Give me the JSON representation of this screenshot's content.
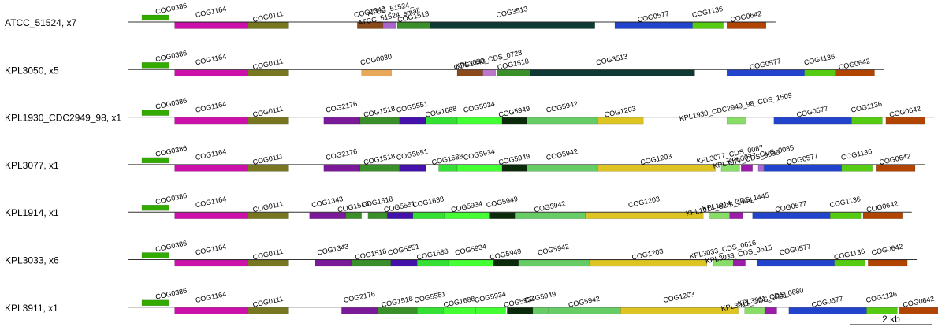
{
  "chart_data": {
    "type": "gene-neighborhood",
    "unit": "bp",
    "scale_bar": {
      "label": "2 kb",
      "length_bp": 2000
    },
    "colors": {
      "COG0386": "#33aa00",
      "COG1164": "#cc11aa",
      "COG0111": "#777722",
      "COG1343": "#8a4a1a",
      "COG1518": "#3b8f2a",
      "COG3513": "#0f3a33",
      "COG0577": "#2244cc",
      "COG1136": "#55cc11",
      "COG0642": "#b04400",
      "COG0030": "#e8a85a",
      "COG2176": "#7a1a99",
      "COG5551": "#4411aa",
      "COG1688": "#33e033",
      "COG5934": "#44ff33",
      "COG5949": "#0a2a0a",
      "COG5942": "#66cc66",
      "COG1203": "#ddc422",
      "CDS": "#9b1eaa",
      "small_green": "#88dd66",
      "ATCC_51524_small": "#aa66cc",
      "KPL3050_CDS_0728": "#bb77cc"
    },
    "tracks": [
      {
        "label": "ATCC_51524, x7",
        "genes": [
          {
            "name": "COG0386",
            "start": 0,
            "end": 380,
            "color": "COG0386",
            "row": 0
          },
          {
            "name": "COG1164",
            "start": 460,
            "end": 1490,
            "color": "COG1164",
            "row": 1
          },
          {
            "name": "COG0111",
            "start": 1490,
            "end": 2060,
            "color": "COG0111",
            "row": 1
          },
          {
            "name": "COG1343",
            "start": 3020,
            "end": 3380,
            "color": "COG1343",
            "row": 1
          },
          {
            "name": "ATCC_51524_small",
            "start": 3380,
            "end": 3560,
            "color": "ATCC_51524_small",
            "row": 1,
            "label": ""
          },
          {
            "name": "ATCC_51524_",
            "start": 3380,
            "end": 3380,
            "color": "ATCC_51524_small",
            "row": 1,
            "label_only": true
          },
          {
            "name": "COG1518",
            "start": 3580,
            "end": 4040,
            "color": "COG1518",
            "row": 1,
            "dark": true
          },
          {
            "name": "COG3513",
            "start": 4040,
            "end": 6350,
            "color": "COG3513",
            "row": 1
          },
          {
            "name": "COG0577",
            "start": 6630,
            "end": 7720,
            "color": "COG0577",
            "row": 1
          },
          {
            "name": "COG1136",
            "start": 7720,
            "end": 8150,
            "color": "COG1136",
            "row": 1
          },
          {
            "name": "COG0642",
            "start": 8200,
            "end": 8750,
            "color": "COG0642",
            "row": 1
          }
        ]
      },
      {
        "label": "KPL3050, x5",
        "genes": [
          {
            "name": "COG0386",
            "start": 0,
            "end": 380,
            "color": "COG0386",
            "row": 0
          },
          {
            "name": "COG1164",
            "start": 460,
            "end": 1490,
            "color": "COG1164",
            "row": 1
          },
          {
            "name": "COG0111",
            "start": 1490,
            "end": 2060,
            "color": "COG0111",
            "row": 1
          },
          {
            "name": "COG0030",
            "start": 3080,
            "end": 3500,
            "color": "COG0030",
            "row": 1
          },
          {
            "name": "COG1343",
            "start": 4420,
            "end": 4780,
            "color": "COG1343",
            "row": 1
          },
          {
            "name": "KPL3050_CDS_0728",
            "start": 4780,
            "end": 4960,
            "color": "KPL3050_CDS_0728",
            "row": 1
          },
          {
            "name": "COG1518",
            "start": 4980,
            "end": 5440,
            "color": "COG1518",
            "row": 1,
            "dark": true
          },
          {
            "name": "COG3513",
            "start": 5440,
            "end": 7750,
            "color": "COG3513",
            "row": 1
          },
          {
            "name": "COG0577",
            "start": 8200,
            "end": 9290,
            "color": "COG0577",
            "row": 1
          },
          {
            "name": "COG1136",
            "start": 9290,
            "end": 9720,
            "color": "COG1136",
            "row": 1
          },
          {
            "name": "COG0642",
            "start": 9720,
            "end": 10270,
            "color": "COG0642",
            "row": 1
          }
        ]
      },
      {
        "label": "KPL1930_CDC2949_98, x1",
        "genes": [
          {
            "name": "COG0386",
            "start": 0,
            "end": 380,
            "color": "COG0386",
            "row": 0
          },
          {
            "name": "COG1164",
            "start": 460,
            "end": 1490,
            "color": "COG1164",
            "row": 1
          },
          {
            "name": "COG0111",
            "start": 1490,
            "end": 2060,
            "color": "COG0111",
            "row": 1
          },
          {
            "name": "COG2176",
            "start": 2550,
            "end": 3060,
            "color": "COG2176",
            "row": 1
          },
          {
            "name": "COG1518",
            "start": 3060,
            "end": 3610,
            "color": "COG1518",
            "row": 1
          },
          {
            "name": "COG5551",
            "start": 3610,
            "end": 3980,
            "color": "COG5551",
            "row": 1
          },
          {
            "name": "COG1688",
            "start": 3980,
            "end": 4420,
            "color": "COG1688",
            "row": 1
          },
          {
            "name": "COG5934",
            "start": 4420,
            "end": 5050,
            "color": "COG5934",
            "row": 1
          },
          {
            "name": "COG5949",
            "start": 5050,
            "end": 5400,
            "color": "COG5949",
            "row": 1
          },
          {
            "name": "COG5942",
            "start": 5400,
            "end": 6390,
            "color": "COG5942",
            "row": 1
          },
          {
            "name": "COG1203",
            "start": 6390,
            "end": 7030,
            "color": "COG1203",
            "row": 1
          },
          {
            "name": "KPL1930_CDC2949_98_CDS_1509",
            "start": 8200,
            "end": 8460,
            "color": "small_green",
            "row": 1
          },
          {
            "name": "COG0577",
            "start": 8860,
            "end": 9950,
            "color": "COG0577",
            "row": 1
          },
          {
            "name": "COG1136",
            "start": 9950,
            "end": 10380,
            "color": "COG1136",
            "row": 1
          },
          {
            "name": "COG0642",
            "start": 10430,
            "end": 10980,
            "color": "COG0642",
            "row": 1
          }
        ]
      },
      {
        "label": "KPL3077, x1",
        "genes": [
          {
            "name": "COG0386",
            "start": 0,
            "end": 380,
            "color": "COG0386",
            "row": 0
          },
          {
            "name": "COG1164",
            "start": 460,
            "end": 1490,
            "color": "COG1164",
            "row": 1
          },
          {
            "name": "COG0111",
            "start": 1490,
            "end": 2060,
            "color": "COG0111",
            "row": 1
          },
          {
            "name": "COG2176",
            "start": 2550,
            "end": 3060,
            "color": "COG2176",
            "row": 1
          },
          {
            "name": "COG1518",
            "start": 3060,
            "end": 3610,
            "color": "COG1518",
            "row": 1
          },
          {
            "name": "COG5551",
            "start": 3610,
            "end": 3980,
            "color": "COG5551",
            "row": 1
          },
          {
            "name": "COG1688",
            "start": 4160,
            "end": 4420,
            "color": "COG1688",
            "row": 1
          },
          {
            "name": "COG5934",
            "start": 4420,
            "end": 5050,
            "color": "COG5934",
            "row": 1
          },
          {
            "name": "COG5949",
            "start": 5050,
            "end": 5400,
            "color": "COG5949",
            "row": 1
          },
          {
            "name": "COG5942",
            "start": 5400,
            "end": 6390,
            "color": "COG5942",
            "row": 1
          },
          {
            "name": "COG1203",
            "start": 6390,
            "end": 8040,
            "color": "COG1203",
            "row": 1
          },
          {
            "name": "KPL3077_CDS_0087",
            "start": 8120,
            "end": 8380,
            "color": "small_green",
            "row": 1
          },
          {
            "name": "KPL3077_CDS_0096",
            "start": 8400,
            "end": 8560,
            "color": "CDS",
            "row": 1
          },
          {
            "name": "KPL3077_CDS_0085",
            "start": 8640,
            "end": 8720,
            "color": "ATCC_51524_small",
            "row": 1
          },
          {
            "name": "COG0577",
            "start": 8720,
            "end": 9810,
            "color": "COG0577",
            "row": 1
          },
          {
            "name": "COG1136",
            "start": 9810,
            "end": 10240,
            "color": "COG1136",
            "row": 1
          },
          {
            "name": "COG0642",
            "start": 10290,
            "end": 10840,
            "color": "COG0642",
            "row": 1
          }
        ]
      },
      {
        "label": "KPL1914, x1",
        "genes": [
          {
            "name": "COG0386",
            "start": 0,
            "end": 380,
            "color": "COG0386",
            "row": 0
          },
          {
            "name": "COG1164",
            "start": 460,
            "end": 1490,
            "color": "COG1164",
            "row": 1
          },
          {
            "name": "COG0111",
            "start": 1490,
            "end": 2060,
            "color": "COG0111",
            "row": 1
          },
          {
            "name": "COG1343",
            "start": 2350,
            "end": 2860,
            "color": "COG2176",
            "row": 1
          },
          {
            "name": "COG1518",
            "start": 2860,
            "end": 3080,
            "color": "COG1518",
            "row": 1
          },
          {
            "name": "COG1518",
            "start": 3170,
            "end": 3440,
            "color": "COG1518",
            "row": 1
          },
          {
            "name": "COG5551",
            "start": 3440,
            "end": 3800,
            "color": "COG5551",
            "row": 1
          },
          {
            "name": "COG1688",
            "start": 3800,
            "end": 4240,
            "color": "COG1688",
            "row": 1
          },
          {
            "name": "COG5934",
            "start": 4240,
            "end": 4880,
            "color": "COG5934",
            "row": 1
          },
          {
            "name": "COG5949",
            "start": 4880,
            "end": 5230,
            "color": "COG5949",
            "row": 1
          },
          {
            "name": "COG5942",
            "start": 5230,
            "end": 6220,
            "color": "COG5942",
            "row": 1
          },
          {
            "name": "COG1203",
            "start": 6220,
            "end": 7870,
            "color": "COG1203",
            "row": 1
          },
          {
            "name": "KPL1914_CDS_1444",
            "start": 7960,
            "end": 8240,
            "color": "small_green",
            "row": 1
          },
          {
            "name": "KPL1914_CDS_1445",
            "start": 8240,
            "end": 8420,
            "color": "CDS",
            "row": 1
          },
          {
            "name": "COG0577",
            "start": 8560,
            "end": 9650,
            "color": "COG0577",
            "row": 1
          },
          {
            "name": "COG1136",
            "start": 9650,
            "end": 10080,
            "color": "COG1136",
            "row": 1
          },
          {
            "name": "COG0642",
            "start": 10110,
            "end": 10660,
            "color": "COG0642",
            "row": 1
          }
        ]
      },
      {
        "label": "KPL3033, x6",
        "genes": [
          {
            "name": "COG0386",
            "start": 0,
            "end": 380,
            "color": "COG0386",
            "row": 0
          },
          {
            "name": "COG1164",
            "start": 460,
            "end": 1490,
            "color": "COG1164",
            "row": 1
          },
          {
            "name": "COG0111",
            "start": 1490,
            "end": 2060,
            "color": "COG0111",
            "row": 1
          },
          {
            "name": "COG1343",
            "start": 2430,
            "end": 2940,
            "color": "COG2176",
            "row": 1
          },
          {
            "name": "COG1518",
            "start": 2940,
            "end": 3490,
            "color": "COG1518",
            "row": 1
          },
          {
            "name": "COG5551",
            "start": 3490,
            "end": 3860,
            "color": "COG5551",
            "row": 1
          },
          {
            "name": "COG1688",
            "start": 3860,
            "end": 4300,
            "color": "COG1688",
            "row": 1
          },
          {
            "name": "COG5934",
            "start": 4300,
            "end": 4930,
            "color": "COG5934",
            "row": 1
          },
          {
            "name": "COG5949",
            "start": 4930,
            "end": 5280,
            "color": "COG5949",
            "row": 1
          },
          {
            "name": "COG5942",
            "start": 5280,
            "end": 6270,
            "color": "COG5942",
            "row": 1
          },
          {
            "name": "COG1203",
            "start": 6270,
            "end": 7920,
            "color": "COG1203",
            "row": 1
          },
          {
            "name": "KPL3033_CDS_0616",
            "start": 8010,
            "end": 8290,
            "color": "small_green",
            "row": 1
          },
          {
            "name": "KPL3033_CDS_0615",
            "start": 8290,
            "end": 8460,
            "color": "CDS",
            "row": 1
          },
          {
            "name": "COG0577",
            "start": 8620,
            "end": 9710,
            "color": "COG0577",
            "row": 1
          },
          {
            "name": "COG1136",
            "start": 9710,
            "end": 10140,
            "color": "COG1136",
            "row": 1
          },
          {
            "name": "COG0642",
            "start": 10180,
            "end": 10730,
            "color": "COG0642",
            "row": 1
          }
        ]
      },
      {
        "label": "KPL3911, x1",
        "genes": [
          {
            "name": "COG0386",
            "start": 0,
            "end": 380,
            "color": "COG0386",
            "row": 0
          },
          {
            "name": "COG1164",
            "start": 460,
            "end": 1490,
            "color": "COG1164",
            "row": 1
          },
          {
            "name": "COG0111",
            "start": 1490,
            "end": 2060,
            "color": "COG0111",
            "row": 1
          },
          {
            "name": "COG2176",
            "start": 2800,
            "end": 3310,
            "color": "COG2176",
            "row": 1
          },
          {
            "name": "COG1518",
            "start": 3310,
            "end": 3860,
            "color": "COG1518",
            "row": 1
          },
          {
            "name": "COG5551",
            "start": 3860,
            "end": 4230,
            "color": "COG1688",
            "row": 1
          },
          {
            "name": "COG1688",
            "start": 4230,
            "end": 4680,
            "color": "COG5934",
            "row": 1
          },
          {
            "name": "COG5934",
            "start": 4680,
            "end": 5100,
            "color": "COG5934",
            "row": 1
          },
          {
            "name": "COG5934",
            "start": 5120,
            "end": 5480,
            "color": "COG5949",
            "row": 1
          },
          {
            "name": "COG5949",
            "start": 5480,
            "end": 5700,
            "color": "COG5942",
            "row": 1
          },
          {
            "name": "COG5942",
            "start": 5700,
            "end": 6710,
            "color": "COG5942",
            "row": 1
          },
          {
            "name": "COG1203",
            "start": 6710,
            "end": 8360,
            "color": "COG1203",
            "row": 1
          },
          {
            "name": "KPL3911_CDS_0681",
            "start": 8450,
            "end": 8730,
            "color": "small_green",
            "row": 1
          },
          {
            "name": "KPL3911_CDS_0680",
            "start": 8740,
            "end": 8900,
            "color": "CDS",
            "row": 1
          },
          {
            "name": "COG0577",
            "start": 9070,
            "end": 10160,
            "color": "COG0577",
            "row": 1
          },
          {
            "name": "COG1136",
            "start": 10160,
            "end": 10590,
            "color": "COG1136",
            "row": 1
          },
          {
            "name": "COG0642",
            "start": 10620,
            "end": 11170,
            "color": "COG0642",
            "row": 1
          }
        ]
      }
    ]
  }
}
